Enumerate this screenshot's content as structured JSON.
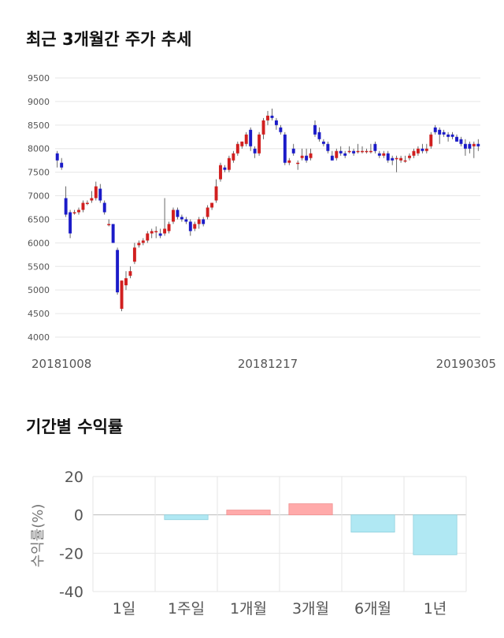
{
  "sections": {
    "price_title": "최근 3개월간 주가 추세",
    "returns_title": "기간별 수익률"
  },
  "colors": {
    "up": "#d11f1f",
    "down": "#1b1bc8",
    "bar_positive": "#ffaaaa",
    "bar_negative": "#b0e8f3",
    "grid": "#e6e6e6"
  },
  "chart_data": [
    {
      "type": "candlestick",
      "title": "최근 3개월간 주가 추세",
      "ylim": [
        4000,
        9500
      ],
      "y_ticks": [
        "9500",
        "9000",
        "8500",
        "8000",
        "7500",
        "7000",
        "6500",
        "6000",
        "5500",
        "5000",
        "4500",
        "4000"
      ],
      "x_tick_labels": [
        "20181008",
        "20181217",
        "20190305"
      ],
      "x_tick_index": [
        0,
        48,
        98
      ],
      "candles": [
        [
          7900,
          7950,
          7600,
          7750
        ],
        [
          7700,
          7800,
          7550,
          7600
        ],
        [
          6950,
          7200,
          6550,
          6600
        ],
        [
          6650,
          6700,
          6100,
          6200
        ],
        [
          6650,
          6700,
          6600,
          6650
        ],
        [
          6650,
          6750,
          6600,
          6700
        ],
        [
          6700,
          6900,
          6650,
          6850
        ],
        [
          6850,
          6900,
          6800,
          6850
        ],
        [
          6900,
          7100,
          6850,
          6950
        ],
        [
          6950,
          7300,
          6900,
          7200
        ],
        [
          7150,
          7250,
          6850,
          6900
        ],
        [
          6850,
          6900,
          6600,
          6650
        ],
        [
          6400,
          6500,
          6350,
          6400
        ],
        [
          6400,
          6400,
          6000,
          6000
        ],
        [
          5850,
          5900,
          4900,
          4950
        ],
        [
          4600,
          5200,
          4550,
          5200
        ],
        [
          5100,
          5400,
          5000,
          5250
        ],
        [
          5300,
          5500,
          5250,
          5400
        ],
        [
          5600,
          6000,
          5550,
          5900
        ],
        [
          5950,
          6050,
          5900,
          6000
        ],
        [
          6000,
          6100,
          5950,
          6050
        ],
        [
          6050,
          6250,
          6000,
          6200
        ],
        [
          6200,
          6300,
          6100,
          6250
        ],
        [
          6250,
          6350,
          6100,
          6250
        ],
        [
          6200,
          6300,
          6100,
          6150
        ],
        [
          6200,
          6950,
          6150,
          6300
        ],
        [
          6250,
          6450,
          6200,
          6400
        ],
        [
          6450,
          6750,
          6400,
          6700
        ],
        [
          6700,
          6750,
          6500,
          6550
        ],
        [
          6550,
          6600,
          6450,
          6500
        ],
        [
          6500,
          6550,
          6400,
          6450
        ],
        [
          6450,
          6500,
          6150,
          6250
        ],
        [
          6300,
          6450,
          6250,
          6400
        ],
        [
          6400,
          6550,
          6300,
          6500
        ],
        [
          6500,
          6550,
          6350,
          6400
        ],
        [
          6550,
          6800,
          6500,
          6750
        ],
        [
          6750,
          6850,
          6700,
          6850
        ],
        [
          6900,
          7350,
          6850,
          7200
        ],
        [
          7350,
          7700,
          7300,
          7650
        ],
        [
          7600,
          7650,
          7500,
          7550
        ],
        [
          7550,
          7850,
          7500,
          7800
        ],
        [
          7750,
          7950,
          7700,
          7900
        ],
        [
          7900,
          8150,
          7850,
          8100
        ],
        [
          8050,
          8150,
          8000,
          8150
        ],
        [
          8100,
          8350,
          8050,
          8300
        ],
        [
          8400,
          8450,
          7950,
          8050
        ],
        [
          8000,
          8050,
          7800,
          7900
        ],
        [
          7900,
          8350,
          7850,
          8300
        ],
        [
          8300,
          8650,
          8200,
          8600
        ],
        [
          8600,
          8800,
          8500,
          8700
        ],
        [
          8700,
          8850,
          8600,
          8650
        ],
        [
          8600,
          8650,
          8400,
          8500
        ],
        [
          8450,
          8500,
          8300,
          8350
        ],
        [
          8300,
          8350,
          7650,
          7700
        ],
        [
          7700,
          7800,
          7650,
          7750
        ],
        [
          8000,
          8100,
          7850,
          7900
        ],
        [
          7700,
          7750,
          7550,
          7700
        ],
        [
          7800,
          8000,
          7750,
          7850
        ],
        [
          7850,
          8000,
          7700,
          7750
        ],
        [
          7800,
          8000,
          7750,
          7900
        ],
        [
          8500,
          8600,
          8250,
          8300
        ],
        [
          8350,
          8450,
          8150,
          8200
        ],
        [
          8150,
          8200,
          8050,
          8100
        ],
        [
          8100,
          8150,
          7900,
          7950
        ],
        [
          7850,
          7950,
          7750,
          7750
        ],
        [
          7800,
          8000,
          7750,
          7950
        ],
        [
          7950,
          8050,
          7850,
          7900
        ],
        [
          7900,
          7950,
          7800,
          7850
        ],
        [
          7950,
          8050,
          7900,
          7950
        ],
        [
          7950,
          8000,
          7850,
          7900
        ],
        [
          7950,
          8100,
          7900,
          7950
        ],
        [
          7950,
          8050,
          7900,
          7950
        ],
        [
          7950,
          8000,
          7900,
          7950
        ],
        [
          7950,
          8100,
          7900,
          7950
        ],
        [
          8100,
          8150,
          7900,
          7950
        ],
        [
          7900,
          7950,
          7800,
          7850
        ],
        [
          7850,
          7950,
          7800,
          7900
        ],
        [
          7900,
          7950,
          7700,
          7750
        ],
        [
          7800,
          7850,
          7650,
          7750
        ],
        [
          7800,
          7850,
          7500,
          7800
        ],
        [
          7750,
          7850,
          7700,
          7800
        ],
        [
          7750,
          7850,
          7700,
          7750
        ],
        [
          7800,
          7900,
          7750,
          7850
        ],
        [
          7850,
          8000,
          7800,
          7950
        ],
        [
          7900,
          8050,
          7850,
          8000
        ],
        [
          8000,
          8100,
          7900,
          7950
        ],
        [
          7950,
          8100,
          7900,
          8000
        ],
        [
          8050,
          8350,
          8000,
          8300
        ],
        [
          8450,
          8500,
          8300,
          8350
        ],
        [
          8400,
          8450,
          8100,
          8300
        ],
        [
          8350,
          8400,
          8250,
          8300
        ],
        [
          8300,
          8350,
          8150,
          8250
        ],
        [
          8300,
          8350,
          8200,
          8250
        ],
        [
          8250,
          8300,
          8150,
          8150
        ],
        [
          8200,
          8250,
          8050,
          8100
        ],
        [
          8100,
          8200,
          7850,
          8000
        ],
        [
          8100,
          8150,
          7900,
          8000
        ],
        [
          8050,
          8150,
          7800,
          8100
        ],
        [
          8100,
          8200,
          7950,
          8050
        ]
      ]
    },
    {
      "type": "bar",
      "title": "기간별 수익률",
      "ylabel": "수익률(%)",
      "ylim": [
        -40,
        20
      ],
      "y_ticks": [
        "20",
        "0",
        "-20",
        "-40"
      ],
      "y_tick_values": [
        20,
        0,
        -20,
        -40
      ],
      "categories": [
        "1일",
        "1주일",
        "1개월",
        "3개월",
        "6개월",
        "1년"
      ],
      "values": [
        0,
        -2.5,
        2.5,
        5.8,
        -9.0,
        -20.8
      ]
    }
  ]
}
